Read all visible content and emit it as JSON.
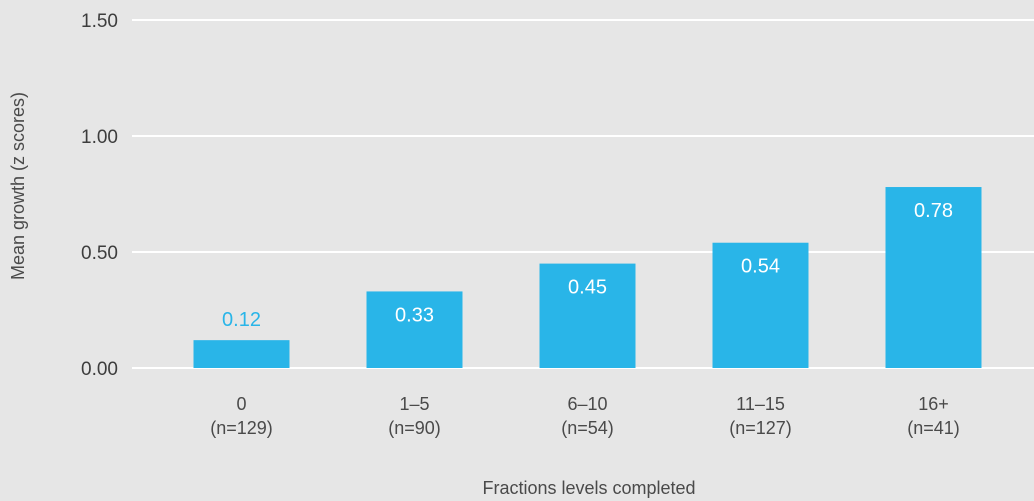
{
  "chart_data": {
    "type": "bar",
    "title": "",
    "xlabel": "Fractions levels completed",
    "ylabel": "Mean growth (z scores)",
    "ylim": [
      0,
      1.5
    ],
    "yticks": [
      "0.00",
      "0.50",
      "1.00",
      "1.50"
    ],
    "categories": [
      {
        "label": "0",
        "n_label": "(n=129)"
      },
      {
        "label": "1–5",
        "n_label": "(n=90)"
      },
      {
        "label": "6–10",
        "n_label": "(n=54)"
      },
      {
        "label": "11–15",
        "n_label": "(n=127)"
      },
      {
        "label": "16+",
        "n_label": "(n=41)"
      }
    ],
    "values": [
      0.12,
      0.33,
      0.45,
      0.54,
      0.78
    ],
    "value_labels": [
      "0.12",
      "0.33",
      "0.45",
      "0.54",
      "0.78"
    ],
    "grid": true,
    "legend": "none",
    "colors": {
      "bar": "#29b5e8",
      "label_inside": "#ffffff",
      "label_outside": "#29b5e8",
      "grid": "#ffffff",
      "background": "#e6e6e6"
    }
  }
}
